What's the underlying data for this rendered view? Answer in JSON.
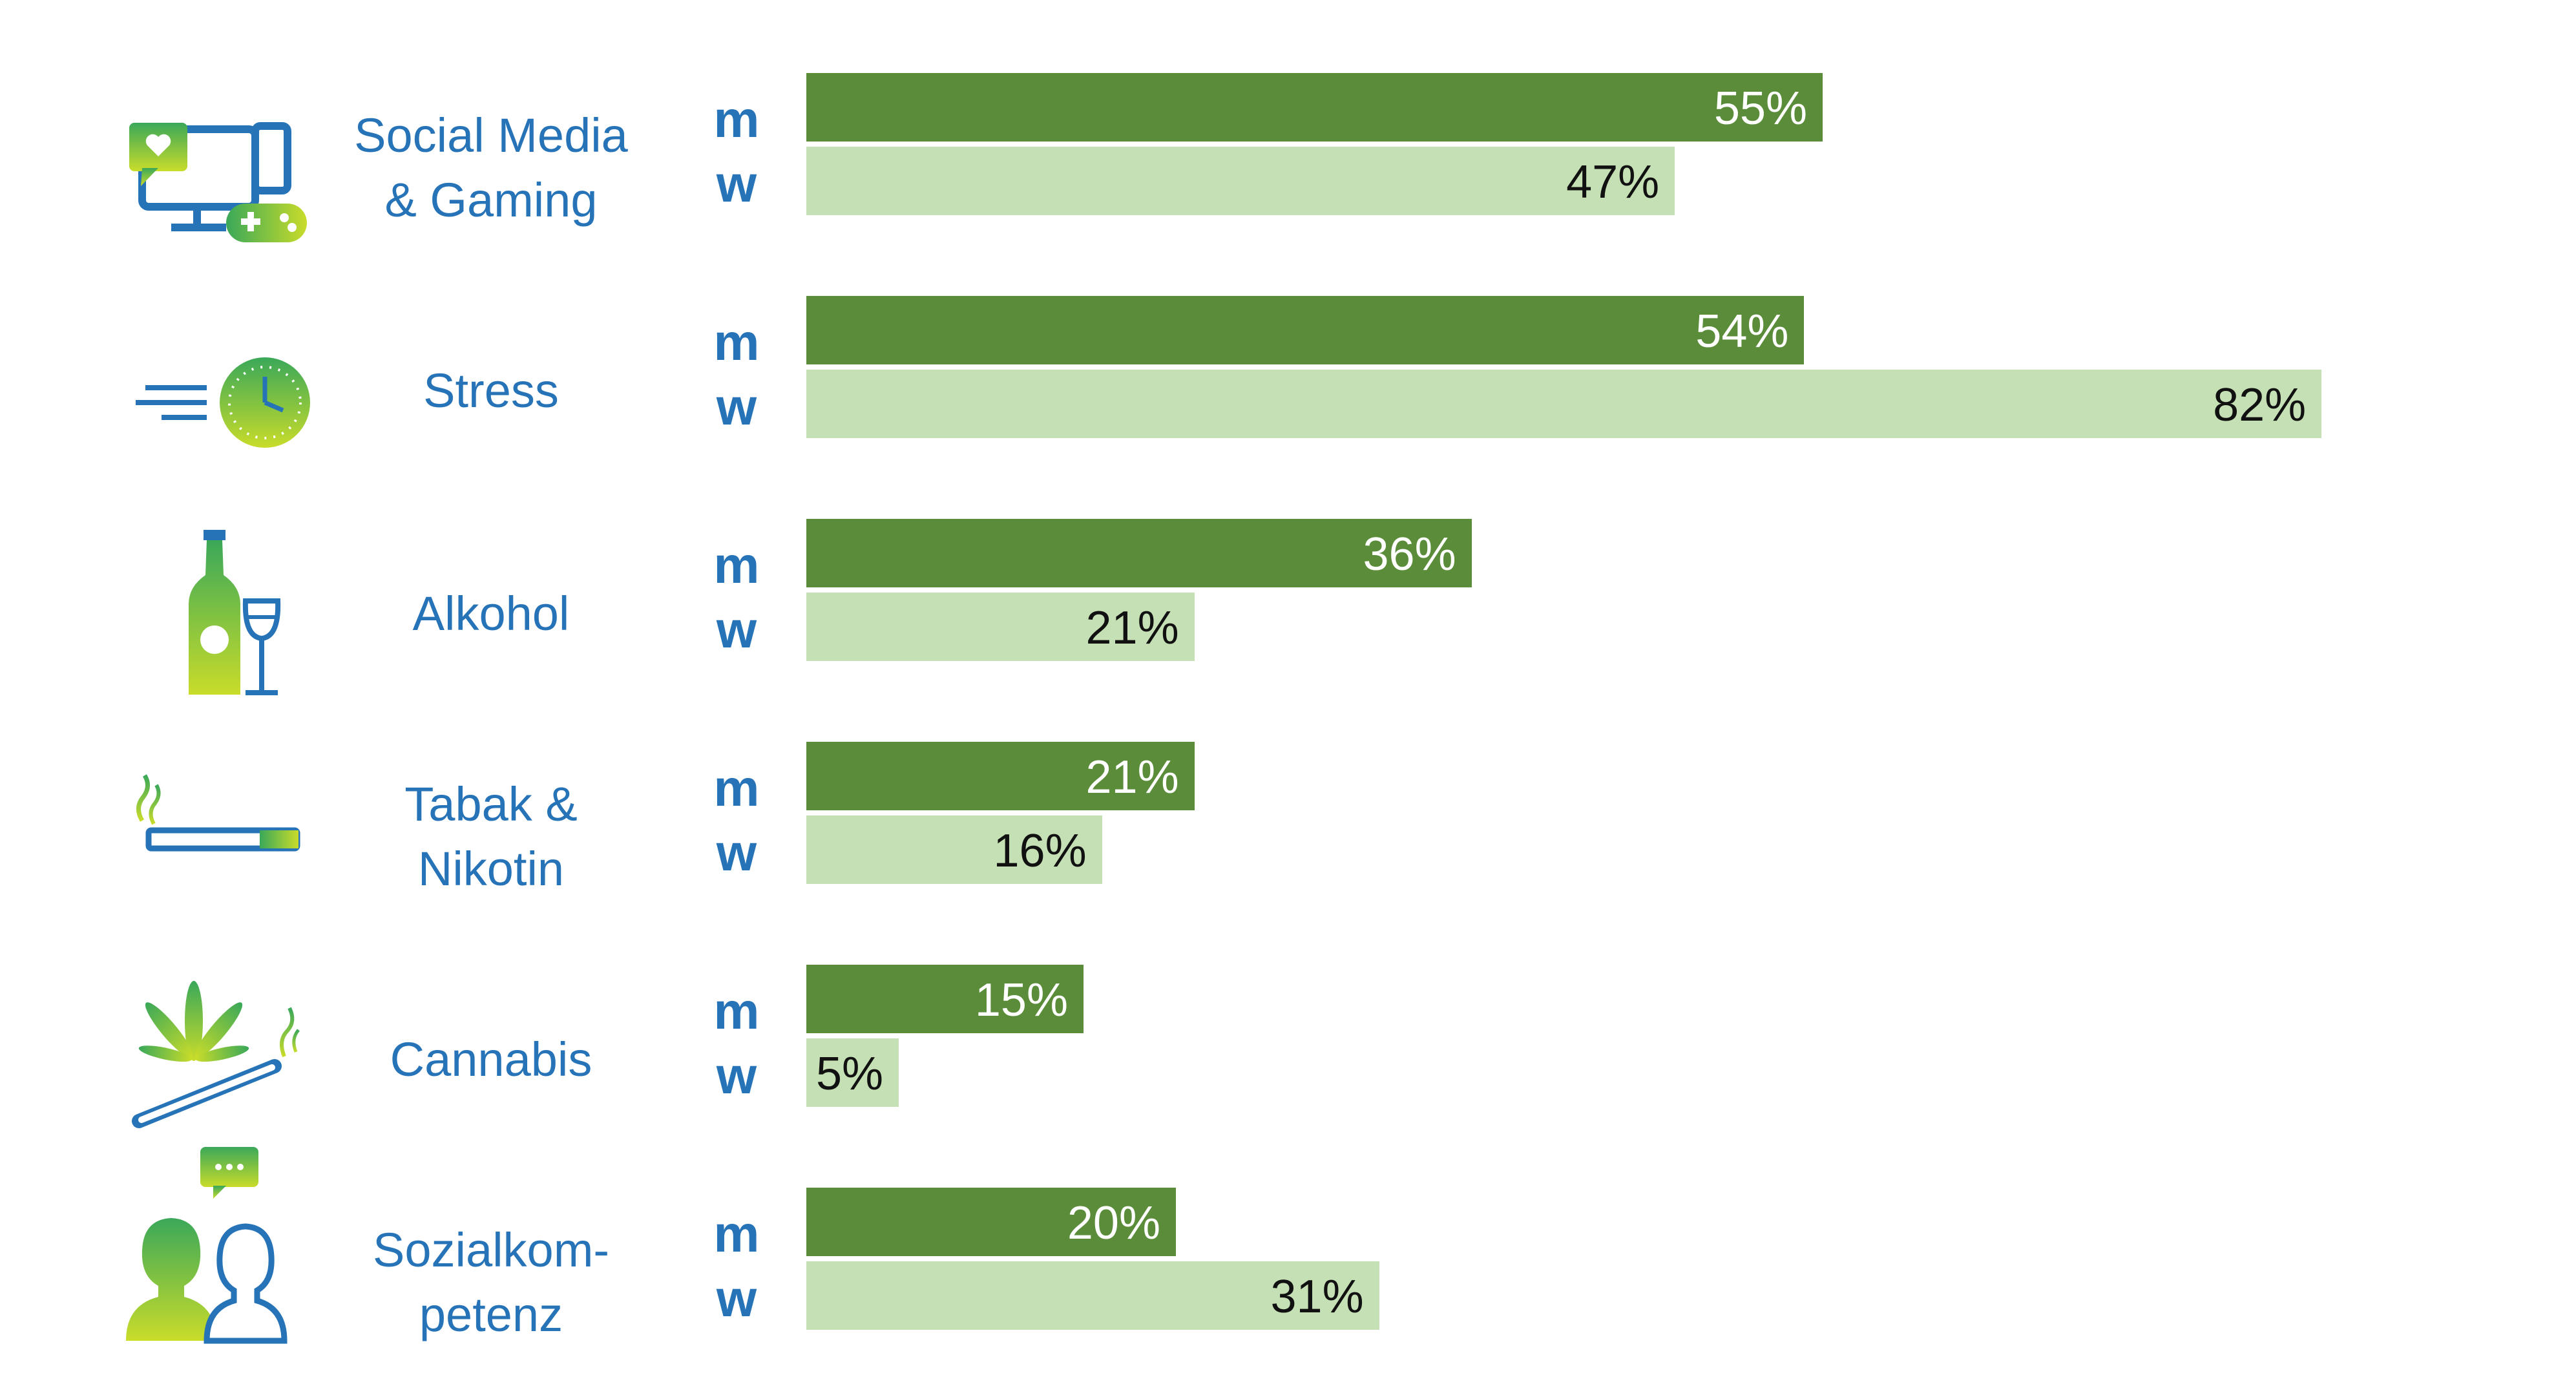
{
  "colors": {
    "male_bar": "#5a8c39",
    "female_bar": "#c5e0b4",
    "label_blue": "#2673b8",
    "male_value_text": "#ffffff",
    "female_value_text": "#111111"
  },
  "chart_data": {
    "type": "bar",
    "orientation": "horizontal",
    "categories": [
      "Social Media & Gaming",
      "Stress",
      "Alkohol",
      "Tabak & Nikotin",
      "Cannabis",
      "Sozialkom-petenz"
    ],
    "series": [
      {
        "name": "m",
        "values": [
          55,
          54,
          36,
          21,
          15,
          20
        ]
      },
      {
        "name": "w",
        "values": [
          47,
          82,
          21,
          16,
          5,
          31
        ]
      }
    ],
    "unit": "%",
    "xlim": [
      0,
      100
    ],
    "grid": false,
    "legend": "none",
    "rows": [
      {
        "label": "Social Media\n& Gaming",
        "icon": "devices-gaming-icon",
        "m": {
          "label": "m",
          "value": 55,
          "text": "55%"
        },
        "w": {
          "label": "w",
          "value": 47,
          "text": "47%"
        }
      },
      {
        "label": "Stress",
        "icon": "clock-speed-icon",
        "m": {
          "label": "m",
          "value": 54,
          "text": "54%"
        },
        "w": {
          "label": "w",
          "value": 82,
          "text": "82%"
        }
      },
      {
        "label": "Alkohol",
        "icon": "bottle-glass-icon",
        "m": {
          "label": "m",
          "value": 36,
          "text": "36%"
        },
        "w": {
          "label": "w",
          "value": 21,
          "text": "21%"
        }
      },
      {
        "label": "Tabak &\nNikotin",
        "icon": "cigarette-icon",
        "m": {
          "label": "m",
          "value": 21,
          "text": "21%"
        },
        "w": {
          "label": "w",
          "value": 16,
          "text": "16%"
        }
      },
      {
        "label": "Cannabis",
        "icon": "cannabis-leaf-icon",
        "m": {
          "label": "m",
          "value": 15,
          "text": "15%"
        },
        "w": {
          "label": "w",
          "value": 5,
          "text": "5%"
        }
      },
      {
        "label": "Sozialkom-\npetenz",
        "icon": "people-chat-icon",
        "m": {
          "label": "m",
          "value": 20,
          "text": "20%"
        },
        "w": {
          "label": "w",
          "value": 31,
          "text": "31%"
        }
      }
    ]
  }
}
